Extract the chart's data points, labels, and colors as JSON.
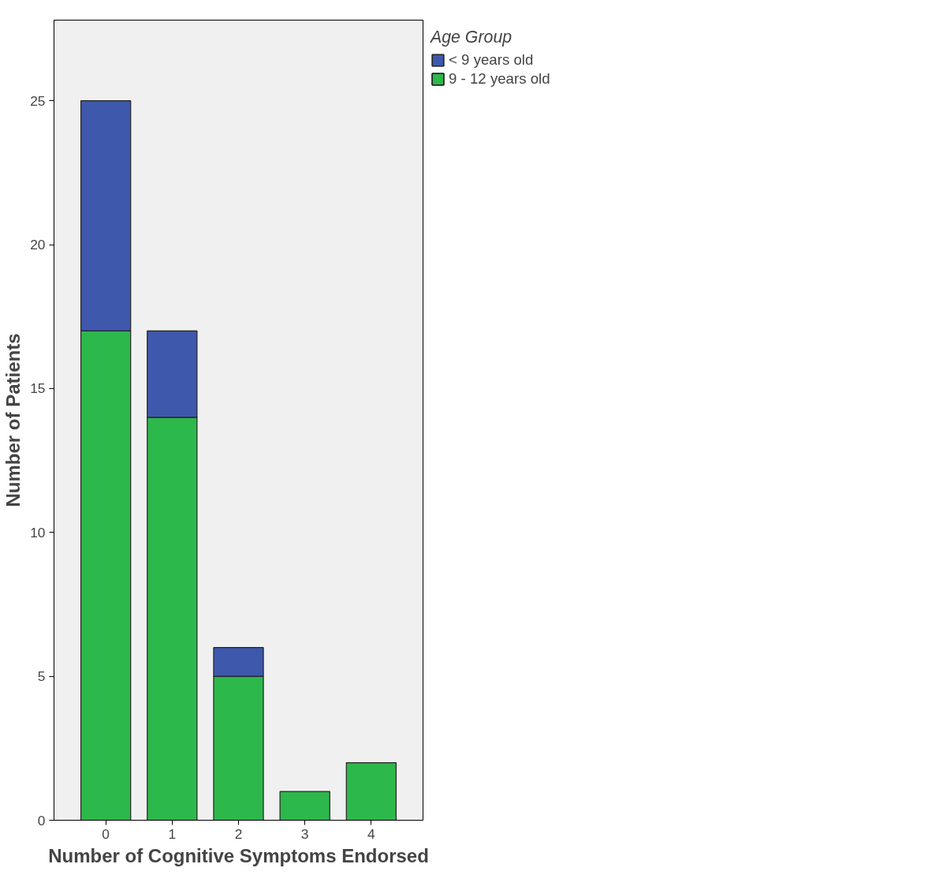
{
  "chart_data": {
    "type": "bar",
    "stacked": true,
    "xlabel": "Number of Cognitive Symptoms Endorsed",
    "ylabel": "Number of Patients",
    "legend_title": "Age Group",
    "legend": "top right",
    "categories": [
      "0",
      "1",
      "2",
      "3",
      "4"
    ],
    "series": [
      {
        "name": "9 - 12 years old",
        "color": "#2db84b",
        "values": [
          17,
          14,
          5,
          1,
          2
        ]
      },
      {
        "name": "< 9 years old",
        "color": "#3e58ac",
        "values": [
          8,
          3,
          1,
          null,
          null
        ]
      }
    ],
    "ylim": [
      0,
      27.8
    ],
    "yticks": [
      0,
      5,
      10,
      15,
      20,
      25
    ],
    "grid": false
  }
}
